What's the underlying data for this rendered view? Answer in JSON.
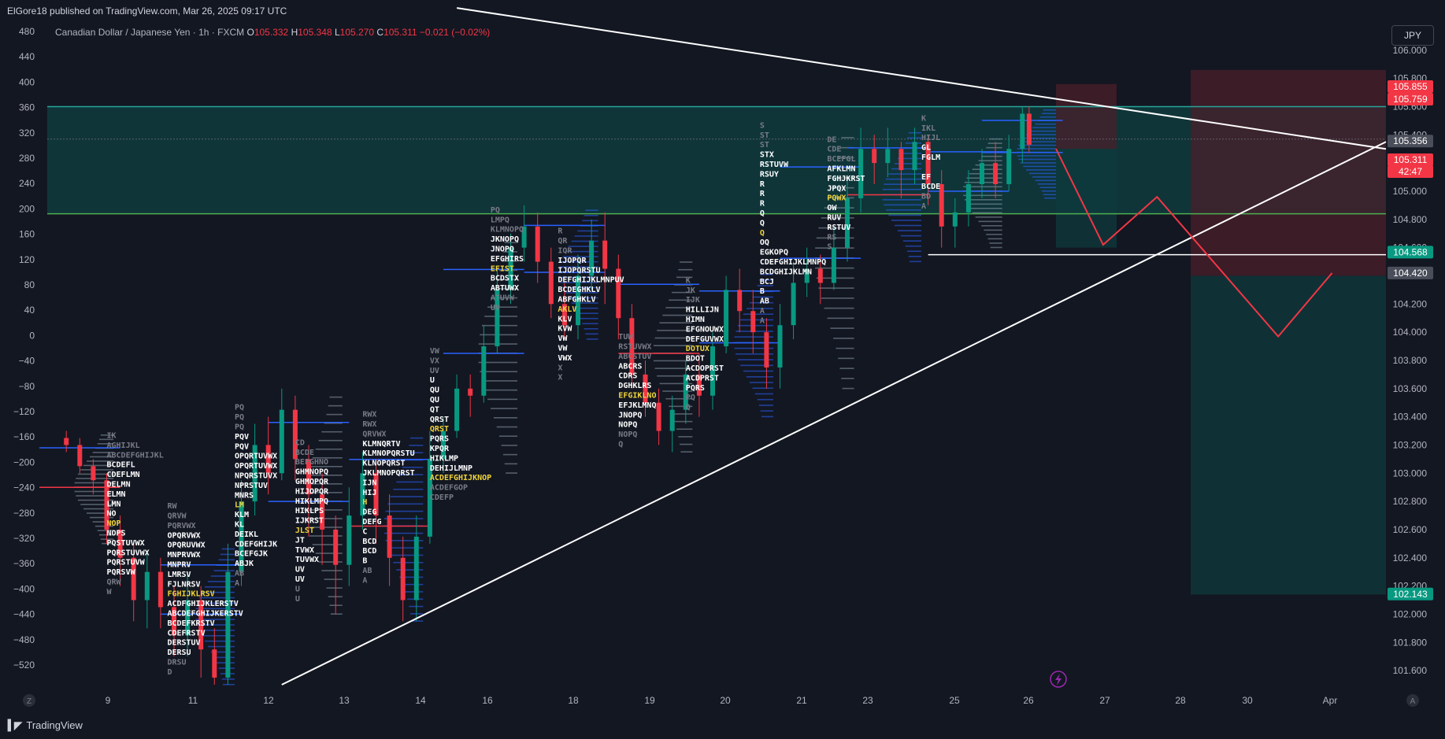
{
  "header": {
    "publish_line": "ElGore18 published on TradingView.com, Mar 26, 2025 09:17 UTC",
    "currency_button": "JPY",
    "brand": "TradingView"
  },
  "legend": {
    "symbol": "Canadian Dollar / Japanese Yen · 1h · FXCM",
    "open_label": "O",
    "open": "105.332",
    "high_label": "H",
    "high": "105.348",
    "low_label": "L",
    "low": "105.270",
    "close_label": "C",
    "close": "105.311",
    "change": "−0.021 (−0.02%)"
  },
  "colors": {
    "background": "#131722",
    "up": "#089981",
    "down": "#f23645",
    "profile_blue": "#2962ff",
    "zone_teal": "#0f3b3d",
    "zone_red": "#4a1f2a",
    "green_line": "#4caf50",
    "teal_line": "#26a69a",
    "badge_red": "#f23645",
    "badge_green": "#089981",
    "badge_gray": "#4a4e5a",
    "tpo_yellow": "#f0d43a"
  },
  "chart_data": {
    "type": "candlestick",
    "symbol": "CADJPY",
    "interval": "1h",
    "price_axis": {
      "ylim": [
        101.5,
        106.2
      ],
      "ticks": [
        "106.000",
        "105.800",
        "105.600",
        "105.400",
        "105.200",
        "105.000",
        "104.800",
        "104.600",
        "104.400",
        "104.200",
        "104.000",
        "103.800",
        "103.600",
        "103.400",
        "103.200",
        "103.000",
        "102.800",
        "102.600",
        "102.400",
        "102.200",
        "102.000",
        "101.800",
        "101.600"
      ]
    },
    "left_axis": {
      "ticks": [
        "480",
        "440",
        "400",
        "360",
        "320",
        "280",
        "240",
        "200",
        "160",
        "120",
        "80",
        "40",
        "0",
        "−40",
        "−80",
        "−120",
        "−160",
        "−200",
        "−240",
        "−280",
        "−320",
        "−360",
        "−400",
        "−440",
        "−480",
        "−520"
      ]
    },
    "time_axis": {
      "ticks": [
        "9",
        "11",
        "12",
        "13",
        "14",
        "16",
        "18",
        "19",
        "20",
        "21",
        "23",
        "25",
        "26",
        "27",
        "28",
        "30",
        "Apr"
      ]
    },
    "price_badges": [
      {
        "label": "105.855",
        "price": 105.855,
        "color": "red"
      },
      {
        "label": "105.759",
        "price": 105.759,
        "color": "red"
      },
      {
        "label": "105.356",
        "price": 105.356,
        "color": "gray"
      },
      {
        "label": "105.311",
        "price": 105.311,
        "color": "red"
      },
      {
        "label": "42:47",
        "price": 105.235,
        "color": "red"
      },
      {
        "label": "104.568",
        "price": 104.568,
        "color": "green"
      },
      {
        "label": "104.420",
        "price": 104.42,
        "color": "gray"
      },
      {
        "label": "102.143",
        "price": 102.143,
        "color": "green"
      }
    ],
    "horizontal_levels": [
      {
        "price": 105.6,
        "color": "teal"
      },
      {
        "price": 104.84,
        "color": "green"
      },
      {
        "price": 104.55,
        "color": "white"
      }
    ],
    "zones": [
      {
        "name": "resistance",
        "from_price": 104.84,
        "to_price": 105.6,
        "color": "teal"
      },
      {
        "name": "short-1-risk",
        "from_price": 105.3,
        "to_price": 105.76,
        "color": "red"
      },
      {
        "name": "short-1-target",
        "from_price": 104.6,
        "to_price": 105.3,
        "color": "teal"
      },
      {
        "name": "short-2-risk",
        "from_price": 104.4,
        "to_price": 105.86,
        "color": "red"
      },
      {
        "name": "short-2-target",
        "from_price": 102.14,
        "to_price": 104.4,
        "color": "teal"
      }
    ],
    "trendlines": [
      {
        "name": "descending-resistance",
        "from": [
          0.31,
          106.3
        ],
        "to": [
          1.0,
          105.3
        ]
      },
      {
        "name": "ascending-support",
        "from": [
          0.18,
          101.5
        ],
        "to": [
          1.0,
          105.35
        ]
      }
    ],
    "projection_path": [
      [
        0.755,
        105.3
      ],
      [
        0.79,
        104.62
      ],
      [
        0.83,
        104.96
      ],
      [
        0.92,
        103.97
      ],
      [
        0.96,
        104.42
      ]
    ],
    "candles": [
      [
        0.02,
        103.25,
        103.2,
        103.3,
        103.15
      ],
      [
        0.03,
        103.2,
        103.05,
        103.25,
        103.0
      ],
      [
        0.04,
        103.05,
        102.95,
        103.1,
        102.85
      ],
      [
        0.05,
        102.95,
        102.6,
        103.0,
        102.5
      ],
      [
        0.06,
        102.6,
        102.4,
        102.7,
        102.2
      ],
      [
        0.07,
        102.4,
        102.1,
        102.5,
        101.95
      ],
      [
        0.08,
        102.1,
        102.3,
        102.45,
        101.9
      ],
      [
        0.09,
        102.3,
        102.05,
        102.4,
        101.9
      ],
      [
        0.1,
        102.05,
        101.85,
        102.2,
        101.7
      ],
      [
        0.11,
        101.85,
        102.1,
        102.3,
        101.7
      ],
      [
        0.12,
        102.1,
        101.75,
        102.2,
        101.55
      ],
      [
        0.13,
        101.75,
        101.55,
        101.9,
        101.5
      ],
      [
        0.14,
        101.55,
        102.3,
        102.5,
        101.5
      ],
      [
        0.15,
        102.3,
        102.8,
        102.95,
        102.2
      ],
      [
        0.16,
        102.8,
        103.2,
        103.35,
        102.7
      ],
      [
        0.17,
        103.2,
        103.0,
        103.4,
        102.85
      ],
      [
        0.18,
        103.0,
        103.45,
        103.6,
        102.95
      ],
      [
        0.19,
        103.45,
        103.1,
        103.55,
        102.95
      ],
      [
        0.2,
        103.1,
        102.85,
        103.2,
        102.55
      ],
      [
        0.21,
        102.85,
        102.6,
        103.0,
        102.35
      ],
      [
        0.22,
        102.6,
        102.35,
        102.7,
        102.0
      ],
      [
        0.23,
        102.35,
        102.7,
        102.9,
        102.2
      ],
      [
        0.24,
        102.7,
        103.0,
        103.15,
        102.6
      ],
      [
        0.25,
        103.0,
        102.7,
        103.1,
        102.5
      ],
      [
        0.26,
        102.7,
        102.4,
        102.85,
        102.2
      ],
      [
        0.27,
        102.4,
        102.1,
        102.55,
        101.95
      ],
      [
        0.28,
        102.1,
        102.55,
        102.7,
        101.95
      ],
      [
        0.29,
        102.55,
        103.1,
        103.3,
        102.5
      ],
      [
        0.3,
        103.1,
        103.3,
        103.4,
        103.0
      ],
      [
        0.31,
        103.3,
        103.6,
        103.7,
        103.25
      ],
      [
        0.32,
        103.6,
        103.55,
        103.7,
        103.4
      ],
      [
        0.33,
        103.55,
        103.9,
        104.05,
        103.5
      ],
      [
        0.34,
        103.9,
        104.3,
        104.45,
        103.85
      ],
      [
        0.35,
        104.3,
        104.6,
        104.7,
        104.2
      ],
      [
        0.36,
        104.6,
        104.75,
        104.9,
        104.5
      ],
      [
        0.37,
        104.75,
        104.5,
        104.85,
        104.35
      ],
      [
        0.38,
        104.5,
        104.2,
        104.6,
        104.1
      ],
      [
        0.39,
        104.2,
        104.05,
        104.35,
        103.95
      ],
      [
        0.4,
        104.05,
        104.4,
        104.55,
        103.95
      ],
      [
        0.41,
        104.4,
        104.65,
        104.8,
        104.3
      ],
      [
        0.42,
        104.65,
        104.45,
        104.85,
        104.2
      ],
      [
        0.43,
        104.45,
        104.1,
        104.55,
        103.95
      ],
      [
        0.44,
        104.1,
        103.7,
        104.2,
        103.6
      ],
      [
        0.45,
        103.7,
        103.5,
        103.8,
        103.4
      ],
      [
        0.46,
        103.5,
        103.3,
        103.6,
        103.2
      ],
      [
        0.47,
        103.3,
        103.45,
        103.55,
        103.15
      ],
      [
        0.48,
        103.45,
        103.7,
        103.8,
        103.35
      ],
      [
        0.49,
        103.7,
        103.55,
        103.85,
        103.4
      ],
      [
        0.5,
        103.55,
        103.9,
        104.0,
        103.45
      ],
      [
        0.51,
        103.9,
        104.3,
        104.4,
        103.85
      ],
      [
        0.52,
        104.3,
        104.15,
        104.45,
        104.0
      ],
      [
        0.53,
        104.15,
        104.0,
        104.3,
        103.85
      ],
      [
        0.54,
        104.0,
        103.75,
        104.1,
        103.6
      ],
      [
        0.55,
        103.75,
        104.05,
        104.2,
        103.6
      ],
      [
        0.56,
        104.05,
        104.35,
        104.5,
        103.95
      ],
      [
        0.57,
        104.35,
        104.45,
        104.6,
        104.25
      ],
      [
        0.58,
        104.45,
        104.35,
        104.55,
        104.2
      ],
      [
        0.59,
        104.35,
        104.6,
        104.75,
        104.3
      ],
      [
        0.6,
        104.6,
        104.95,
        105.1,
        104.5
      ],
      [
        0.61,
        104.95,
        105.3,
        105.45,
        104.85
      ],
      [
        0.62,
        105.3,
        105.2,
        105.4,
        105.05
      ],
      [
        0.63,
        105.2,
        105.3,
        105.45,
        105.1
      ],
      [
        0.64,
        105.3,
        105.15,
        105.35,
        104.95
      ],
      [
        0.65,
        105.15,
        105.35,
        105.45,
        105.05
      ],
      [
        0.66,
        105.35,
        105.05,
        105.4,
        104.9
      ],
      [
        0.67,
        105.05,
        104.75,
        105.15,
        104.6
      ],
      [
        0.68,
        104.75,
        104.85,
        104.95,
        104.6
      ],
      [
        0.69,
        104.85,
        105.05,
        105.15,
        104.75
      ],
      [
        0.7,
        105.05,
        105.2,
        105.3,
        104.95
      ],
      [
        0.71,
        105.2,
        105.05,
        105.35,
        104.95
      ],
      [
        0.72,
        105.05,
        105.3,
        105.4,
        105.0
      ],
      [
        0.73,
        105.3,
        105.55,
        105.6,
        105.2
      ],
      [
        0.735,
        105.55,
        105.33,
        105.6,
        105.27
      ]
    ],
    "tpo_profiles": [
      {
        "rows": [
          "IK",
          "AGHIJKL",
          "ABCDEFGHIJKL",
          "BCDEFL",
          "CDEFLMN",
          "DELMN",
          "ELMN",
          "LMN",
          "NO",
          "NOP",
          "NOPS",
          "PQSTUVWX",
          "PQRSTUVWX",
          "PQRSTUVW",
          "PQRSVW",
          "QRW",
          "W"
        ]
      },
      {
        "rows": [
          "RW",
          "QRVW",
          "PQRVWX",
          "OPQRVWX",
          "OPQRUVWX",
          "MNPRVWX",
          "MNPRV",
          "LMRSV",
          "FJLNRSV",
          "FGHIJKLRSV",
          "ACDFGHIJKLERSTV",
          "ABCDEFGHIJKERSTV",
          "BCDEFKRSTV",
          "CDEFRSTV",
          "DERSTUV",
          "DERSU",
          "DRSU",
          "D"
        ]
      },
      {
        "rows": [
          "PQ",
          "PQ",
          "PQ",
          "PQV",
          "PQV",
          "OPQRTUVWX",
          "OPQRTUVWX",
          "NPQRSTUVX",
          "NPRSTUV",
          "MNRS",
          "LM",
          "KLM",
          "KL",
          "DEIKL",
          "CDEFGHIJK",
          "BCEFGJK",
          "ABJK",
          "AB",
          "A"
        ]
      },
      {
        "rows": [
          "CD",
          "BCDE",
          "BEFGHNO",
          "GHMNOPQ",
          "GHMOPQR",
          "HIJOPQR",
          "HIKLMPQ",
          "HIKLPS",
          "IJKRST",
          "JLST",
          "JT",
          "TVWX",
          "TUVWX",
          "UV",
          "UV",
          "U",
          "U"
        ]
      },
      {
        "rows": [
          "RWX",
          "RWX",
          "QRVWX",
          "KLMNQRTV",
          "KLMNOPQRSTU",
          "KLNOPQRST",
          "JKLMNOPQRST",
          "IJN",
          "HIJ",
          "H",
          "DEG",
          "DEFG",
          "C",
          "BCD",
          "BCD",
          "B",
          "AB",
          "A"
        ]
      },
      {
        "rows": [
          "VW",
          "VX",
          "UV",
          "U",
          "QU",
          "QU",
          "QT",
          "QRST",
          "QRST",
          "PQRS",
          "KPQR",
          "HIKLMP",
          "DEHIJLMNP",
          "ACDEFGHIJKNOP",
          "ACDEFGOP",
          "CDEFP"
        ]
      },
      {
        "rows": [
          "PQ",
          "LMPQ",
          "KLMNOPQ",
          "JKNOPQ",
          "JNOPQ",
          "EFGHIRS",
          "EFIST",
          "BCDSTX",
          "ABTUWX",
          "ATUVW",
          "UV"
        ]
      },
      {
        "rows": [
          "R",
          "QR",
          "IQR",
          "IJOPQR",
          "IJOPQRSTU",
          "DEFGHIJKLMNPUV",
          "BCDEGHKLV",
          "ABFGHKLV",
          "AKLV",
          "KLV",
          "KVW",
          "VW",
          "VW",
          "VWX",
          "X",
          "X"
        ]
      },
      {
        "rows": [
          "TUW",
          "RSTUVWX",
          "ABCSTUV",
          "ABCRS",
          "CDRS",
          "DGHKLRS",
          "EFGIKLNO",
          "EFJKLMNQ",
          "JNOPQ",
          "NOPQ",
          "NOPQ",
          "Q"
        ]
      },
      {
        "rows": [
          "K",
          "JK",
          "IJK",
          "HILLIJN",
          "HIMN",
          "EFGNOUWX",
          "DEFGUVWX",
          "DOTUX",
          "BDOT",
          "ACDOPRST",
          "ACDPRST",
          "PQRS",
          "PQ",
          "Q"
        ]
      },
      {
        "rows": [
          "S",
          "ST",
          "ST",
          "STX",
          "RSTUVW",
          "RSUY",
          "R",
          "R",
          "R",
          "Q",
          "Q",
          "Q",
          "OQ",
          "EGKOPQ",
          "CDEFGHIJKLMNPQ",
          "BCDGHIJKLMN",
          "BCJ",
          "B",
          "AB",
          "A",
          "A"
        ]
      },
      {
        "rows": [
          "DE",
          "CDE",
          "BCEFGL",
          "AFKLMN",
          "FGHJKRST",
          "JPQX",
          "PQWX",
          "OW",
          "RUV",
          "RSTUV",
          "RS",
          "S"
        ]
      },
      {
        "rows": [
          "K",
          "IKL",
          "HIJL",
          "GL",
          "FGLM",
          "",
          "EF",
          "BCDE",
          "BD",
          "A"
        ]
      }
    ]
  }
}
